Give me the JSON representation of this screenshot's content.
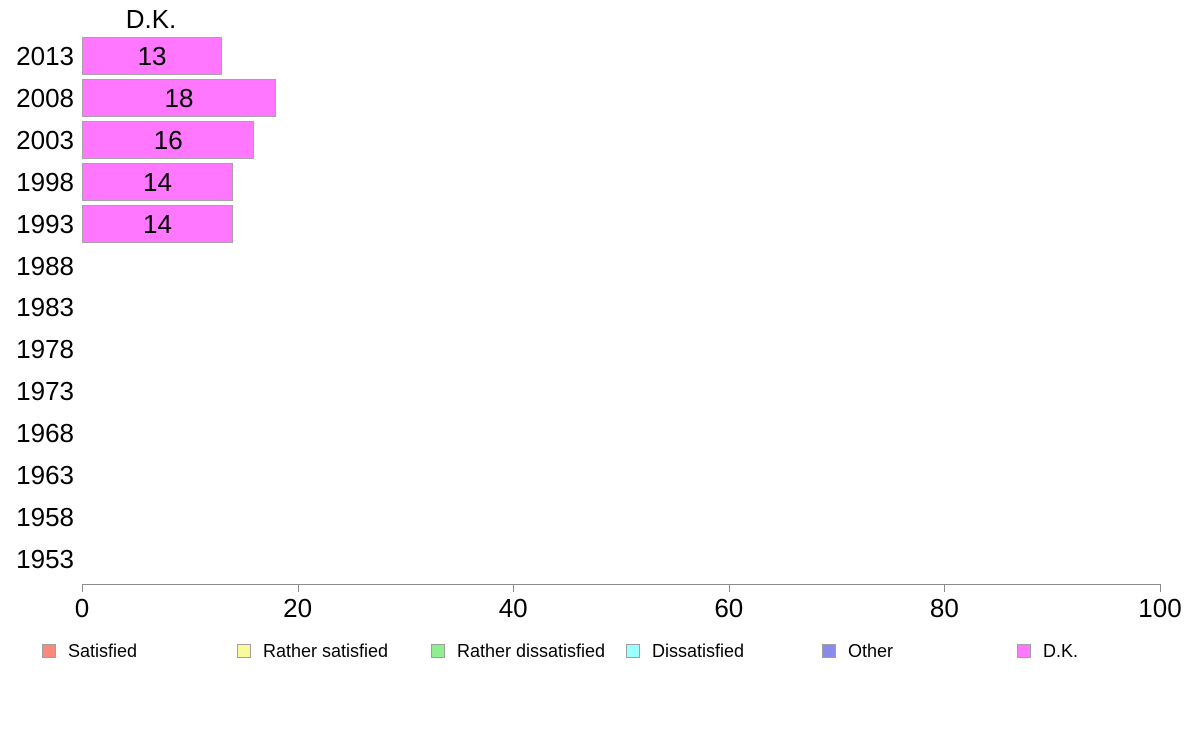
{
  "chart_data": {
    "type": "bar",
    "orientation": "horizontal",
    "title": "D.K.",
    "series_name": "D.K.",
    "categories": [
      "2013",
      "2008",
      "2003",
      "1998",
      "1993",
      "1988",
      "1983",
      "1978",
      "1973",
      "1968",
      "1963",
      "1958",
      "1953"
    ],
    "values": [
      13,
      18,
      16,
      14,
      14,
      null,
      null,
      null,
      null,
      null,
      null,
      null,
      null
    ],
    "bar_labels": [
      "13",
      "18",
      "16",
      "14",
      "14",
      "",
      "",
      "",
      "",
      "",
      "",
      "",
      ""
    ],
    "xlabel": "",
    "ylabel": "",
    "xlim": [
      0,
      100
    ],
    "x_ticks": [
      0,
      20,
      40,
      60,
      80,
      100
    ],
    "grid": false,
    "legend_position": "bottom",
    "colors": {
      "bar_fill": "#FF77FF",
      "bar_border": "#A8A2A8",
      "axis": "#8C8C8C",
      "text": "#000000"
    },
    "legend": [
      {
        "label": "Satisfied",
        "fill": "#F9887F"
      },
      {
        "label": "Rather satisfied",
        "fill": "#FAFA9B"
      },
      {
        "label": "Rather dissatisfied",
        "fill": "#8FEE8F"
      },
      {
        "label": "Dissatisfied",
        "fill": "#9BFFFF"
      },
      {
        "label": "Other",
        "fill": "#8A8AEB"
      },
      {
        "label": "D.K.",
        "fill": "#FF77FF"
      }
    ],
    "legend_swatch_border": "#A0A0A0"
  }
}
